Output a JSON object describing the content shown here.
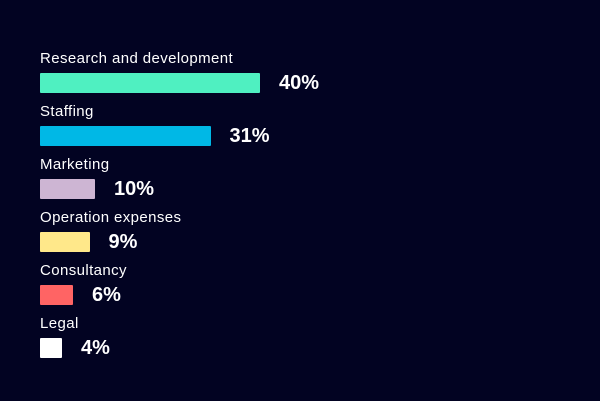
{
  "chart_data": {
    "type": "bar",
    "orientation": "horizontal",
    "categories": [
      "Research and development",
      "Staffing",
      "Marketing",
      "Operation expenses",
      "Consultancy",
      "Legal"
    ],
    "values": [
      40,
      31,
      10,
      9,
      6,
      4
    ],
    "value_labels": [
      "40%",
      "31%",
      "10%",
      "9%",
      "6%",
      "4%"
    ],
    "colors": [
      "#4ff0c1",
      "#00b8e6",
      "#cdb5d3",
      "#ffe88a",
      "#ff6464",
      "#ffffff"
    ],
    "xlim": [
      0,
      40
    ],
    "title": "",
    "xlabel": "",
    "ylabel": "",
    "grid": false,
    "legend": "none"
  }
}
